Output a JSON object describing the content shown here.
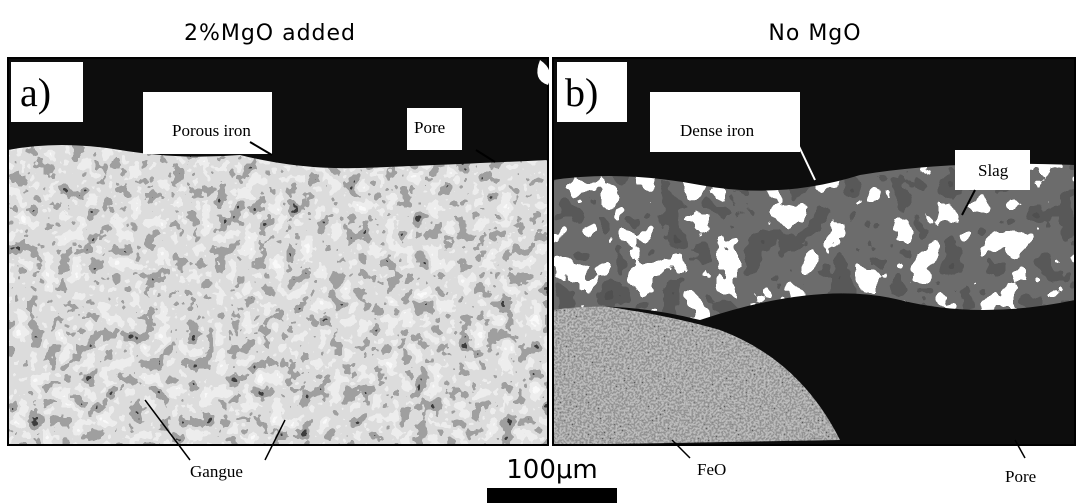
{
  "header": {
    "left_title": "2%MgO added",
    "right_title": "No MgO"
  },
  "panels": [
    {
      "label": "a)",
      "annotations": [
        "Porous iron",
        "Pore",
        "Gangue"
      ]
    },
    {
      "label": "b)",
      "annotations": [
        "Dense iron",
        "Slag",
        "FeO",
        "Pore"
      ]
    }
  ],
  "scale_bar": "100μm"
}
